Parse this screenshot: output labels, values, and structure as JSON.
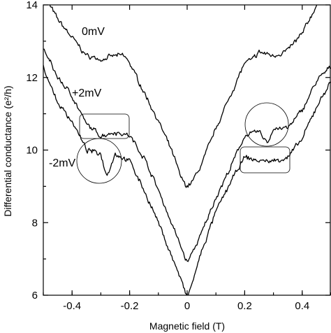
{
  "chart_data": {
    "type": "line",
    "title": "",
    "xlabel": "Magnetic field (T)",
    "ylabel": "Differential conductance (e²/h)",
    "xlim": [
      -0.5,
      0.5
    ],
    "ylim": [
      6,
      14
    ],
    "x_ticks": [
      -0.4,
      -0.2,
      0,
      0.2,
      0.4
    ],
    "x_tick_labels": [
      "-0.4",
      "-0.2",
      "0",
      "0.2",
      "0.4"
    ],
    "y_ticks": [
      6,
      8,
      10,
      12,
      14
    ],
    "y_tick_labels": [
      "6",
      "8",
      "10",
      "12",
      "14"
    ],
    "grid": false,
    "series": [
      {
        "name": "0mV",
        "x": [
          -0.5,
          -0.45,
          -0.4,
          -0.35,
          -0.3,
          -0.25,
          -0.22,
          -0.2,
          -0.15,
          -0.1,
          -0.05,
          -0.02,
          0,
          0.02,
          0.05,
          0.1,
          0.15,
          0.2,
          0.23,
          0.25,
          0.3,
          0.35,
          0.4,
          0.45,
          0.5
        ],
        "values": [
          14.3,
          13.6,
          13.1,
          12.6,
          12.5,
          12.6,
          12.6,
          12.4,
          11.6,
          10.8,
          9.9,
          9.2,
          9.0,
          9.15,
          9.6,
          10.6,
          11.5,
          12.4,
          12.5,
          12.7,
          12.6,
          12.75,
          13.2,
          14.0,
          14.4
        ]
      },
      {
        "name": "+2mV",
        "x": [
          -0.5,
          -0.45,
          -0.4,
          -0.35,
          -0.3,
          -0.25,
          -0.2,
          -0.15,
          -0.1,
          -0.05,
          -0.02,
          0,
          0.02,
          0.05,
          0.1,
          0.15,
          0.2,
          0.25,
          0.28,
          0.3,
          0.35,
          0.4,
          0.45,
          0.5
        ],
        "values": [
          12.8,
          12.0,
          11.5,
          10.7,
          10.4,
          10.5,
          10.4,
          9.8,
          8.9,
          7.9,
          7.3,
          6.9,
          7.2,
          7.7,
          8.7,
          9.5,
          10.4,
          10.5,
          10.2,
          10.6,
          10.6,
          11.1,
          11.9,
          12.3
        ]
      },
      {
        "name": "-2mV",
        "x": [
          -0.5,
          -0.45,
          -0.4,
          -0.35,
          -0.3,
          -0.28,
          -0.25,
          -0.2,
          -0.15,
          -0.1,
          -0.05,
          -0.02,
          0,
          0.02,
          0.05,
          0.1,
          0.15,
          0.2,
          0.25,
          0.3,
          0.35,
          0.4,
          0.45,
          0.5
        ],
        "values": [
          12.3,
          11.3,
          10.8,
          10.0,
          9.9,
          9.3,
          9.9,
          9.7,
          8.9,
          8.0,
          7.0,
          6.4,
          5.9,
          6.4,
          7.2,
          8.3,
          9.1,
          9.8,
          9.7,
          9.7,
          9.8,
          10.3,
          11.2,
          11.9
        ]
      }
    ]
  }
}
